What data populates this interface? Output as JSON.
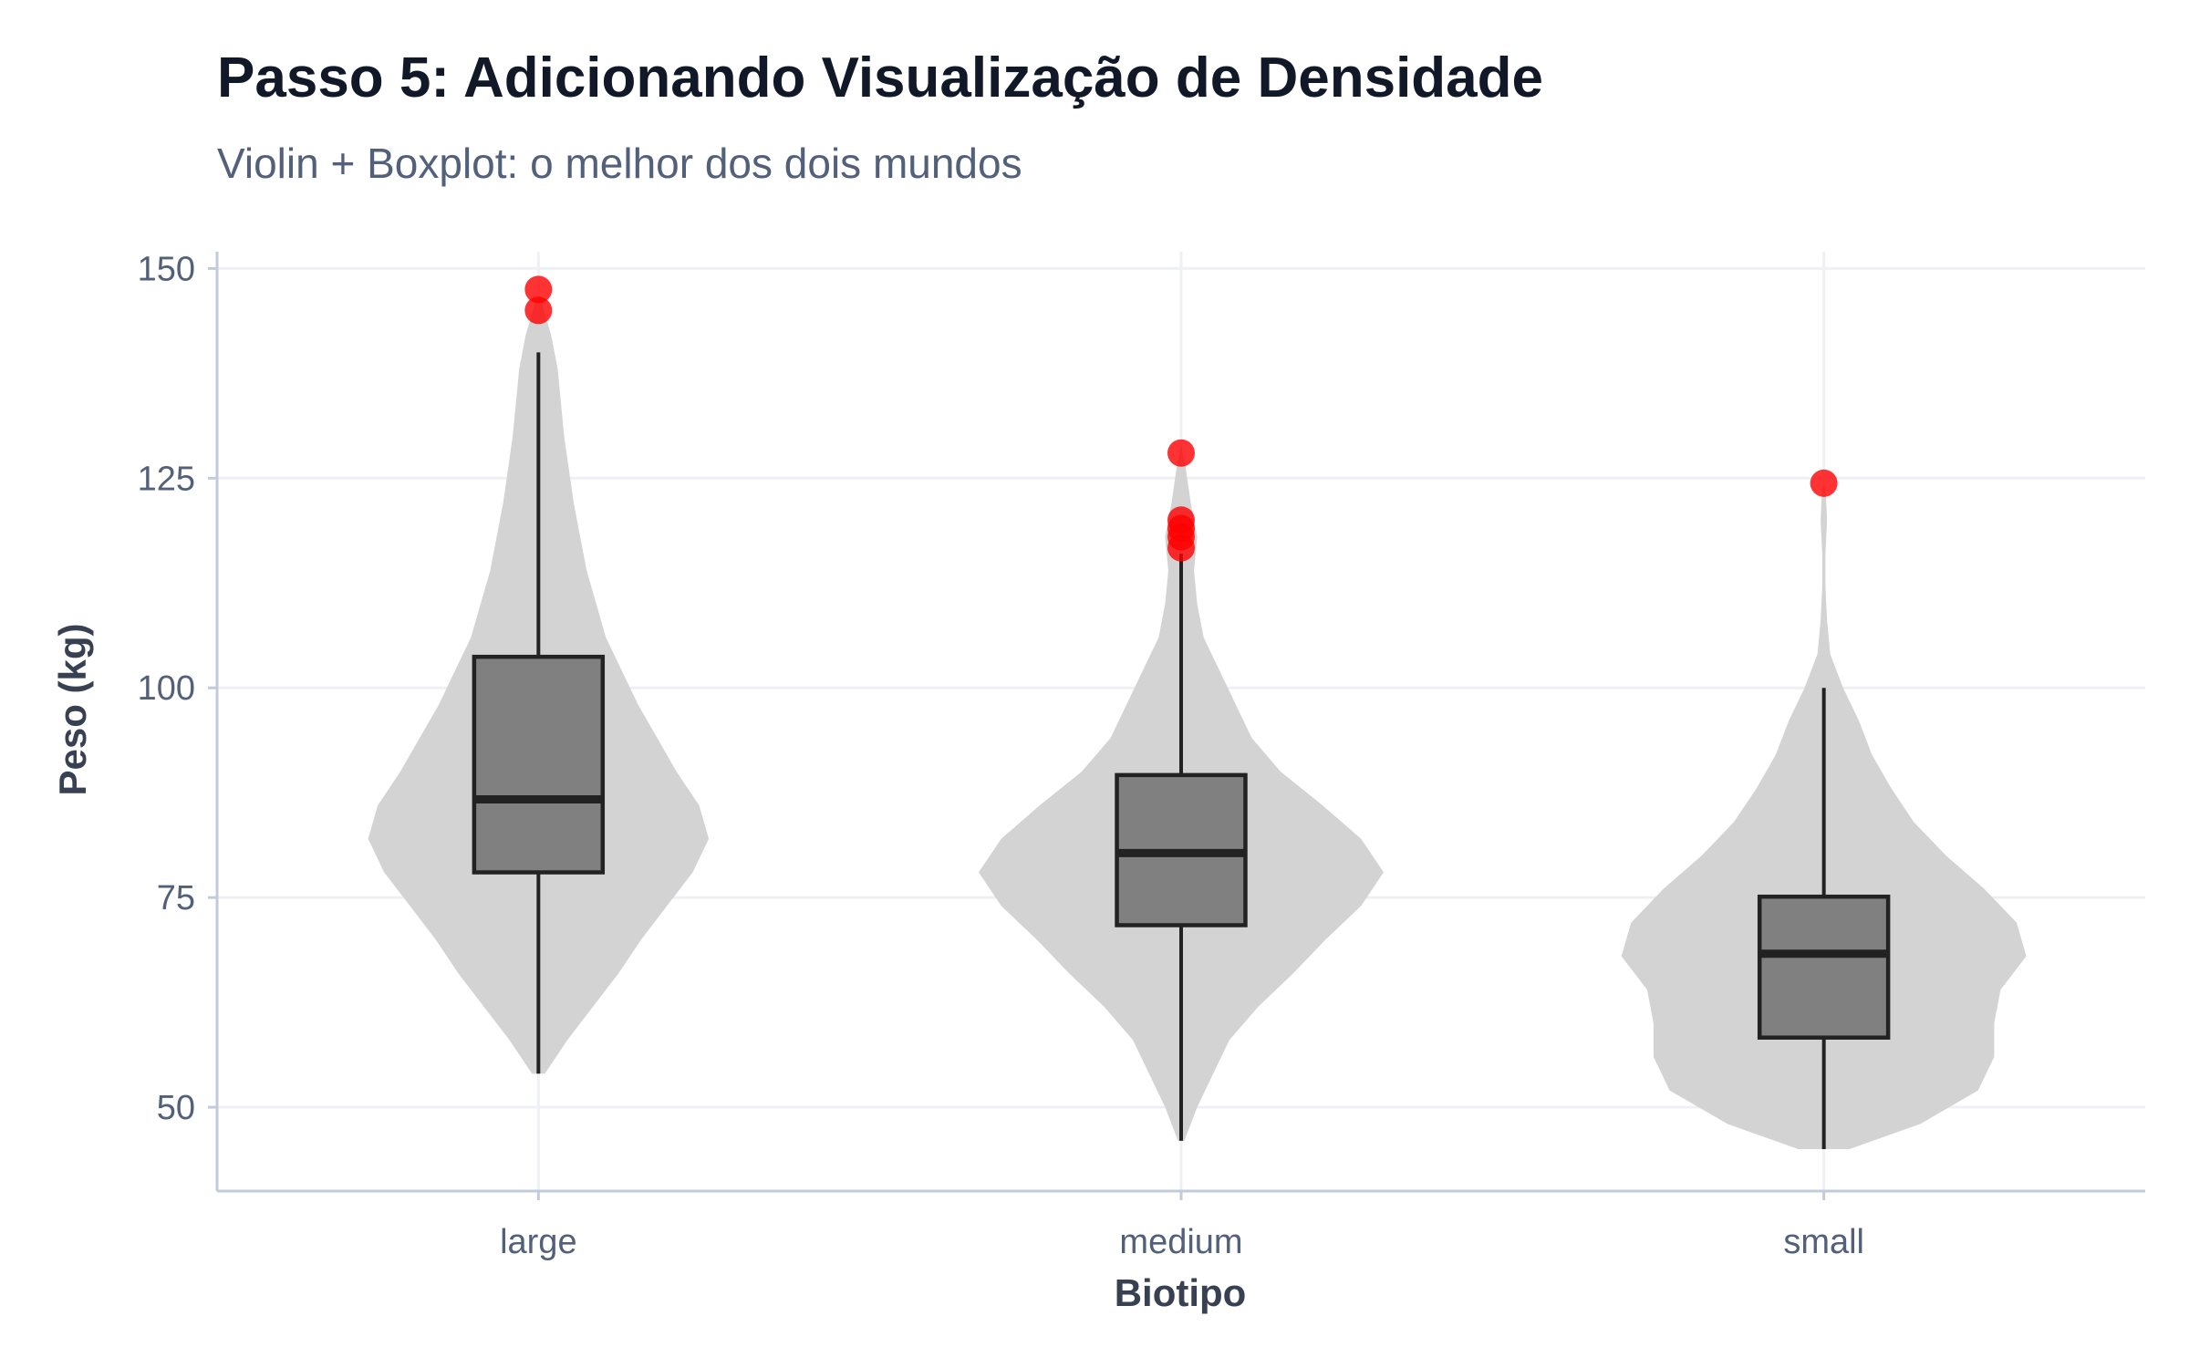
{
  "chart_data": {
    "type": "violin",
    "title": "Passo 5: Adicionando Visualização de Densidade",
    "subtitle": "Violin + Boxplot: o melhor dos dois mundos",
    "xlabel": "Biotipo",
    "ylabel": "Peso (kg)",
    "ylim": [
      40,
      152
    ],
    "yticks": [
      50,
      75,
      100,
      125,
      150
    ],
    "grid": true,
    "colors": {
      "violin": "#d3d3d3",
      "box_fill": "#808080",
      "box_line": "#222222",
      "outlier": "#ff0000",
      "grid": "#eef0f4",
      "axis": "#c3cad8"
    },
    "categories": [
      "large",
      "medium",
      "small"
    ],
    "groups": [
      {
        "category": "large",
        "box": {
          "q1": 78,
          "median": 86.7,
          "q3": 103.7,
          "whisker_low": 54,
          "whisker_high": 140
        },
        "outliers": [
          145,
          147.5
        ],
        "violin": {
          "y": [
            54,
            58,
            62,
            66,
            70,
            74,
            78,
            82,
            86,
            90,
            94,
            98,
            102,
            106,
            110,
            114,
            118,
            122,
            126,
            130,
            134,
            138,
            142,
            146
          ],
          "half_width": [
            0.02,
            0.09,
            0.17,
            0.25,
            0.32,
            0.4,
            0.48,
            0.53,
            0.5,
            0.43,
            0.37,
            0.31,
            0.26,
            0.21,
            0.18,
            0.15,
            0.13,
            0.11,
            0.095,
            0.08,
            0.07,
            0.06,
            0.04,
            0.01
          ]
        }
      },
      {
        "category": "medium",
        "box": {
          "q1": 71.7,
          "median": 80.3,
          "q3": 89.6,
          "whisker_low": 46,
          "whisker_high": 116
        },
        "outliers": [
          116.7,
          118,
          119,
          120,
          128
        ],
        "violin": {
          "y": [
            46,
            50,
            54,
            58,
            62,
            66,
            70,
            74,
            78,
            82,
            86,
            90,
            94,
            98,
            102,
            106,
            110,
            114,
            118,
            122,
            126,
            129
          ],
          "half_width": [
            0.01,
            0.05,
            0.1,
            0.15,
            0.24,
            0.35,
            0.45,
            0.56,
            0.63,
            0.56,
            0.44,
            0.31,
            0.22,
            0.17,
            0.12,
            0.07,
            0.05,
            0.04,
            0.05,
            0.03,
            0.015,
            0.0
          ]
        }
      },
      {
        "category": "small",
        "box": {
          "q1": 58.3,
          "median": 68.3,
          "q3": 75.1,
          "whisker_low": 45,
          "whisker_high": 100
        },
        "outliers": [
          124.4
        ],
        "violin": {
          "y": [
            45,
            48,
            52,
            56,
            60,
            64,
            68,
            72,
            76,
            80,
            84,
            88,
            92,
            96,
            100,
            104,
            108,
            112,
            116,
            120,
            124
          ],
          "half_width": [
            0.08,
            0.3,
            0.48,
            0.53,
            0.53,
            0.55,
            0.63,
            0.6,
            0.5,
            0.38,
            0.28,
            0.21,
            0.15,
            0.11,
            0.06,
            0.02,
            0.01,
            0.005,
            0.005,
            0.01,
            0.005
          ]
        }
      }
    ]
  }
}
